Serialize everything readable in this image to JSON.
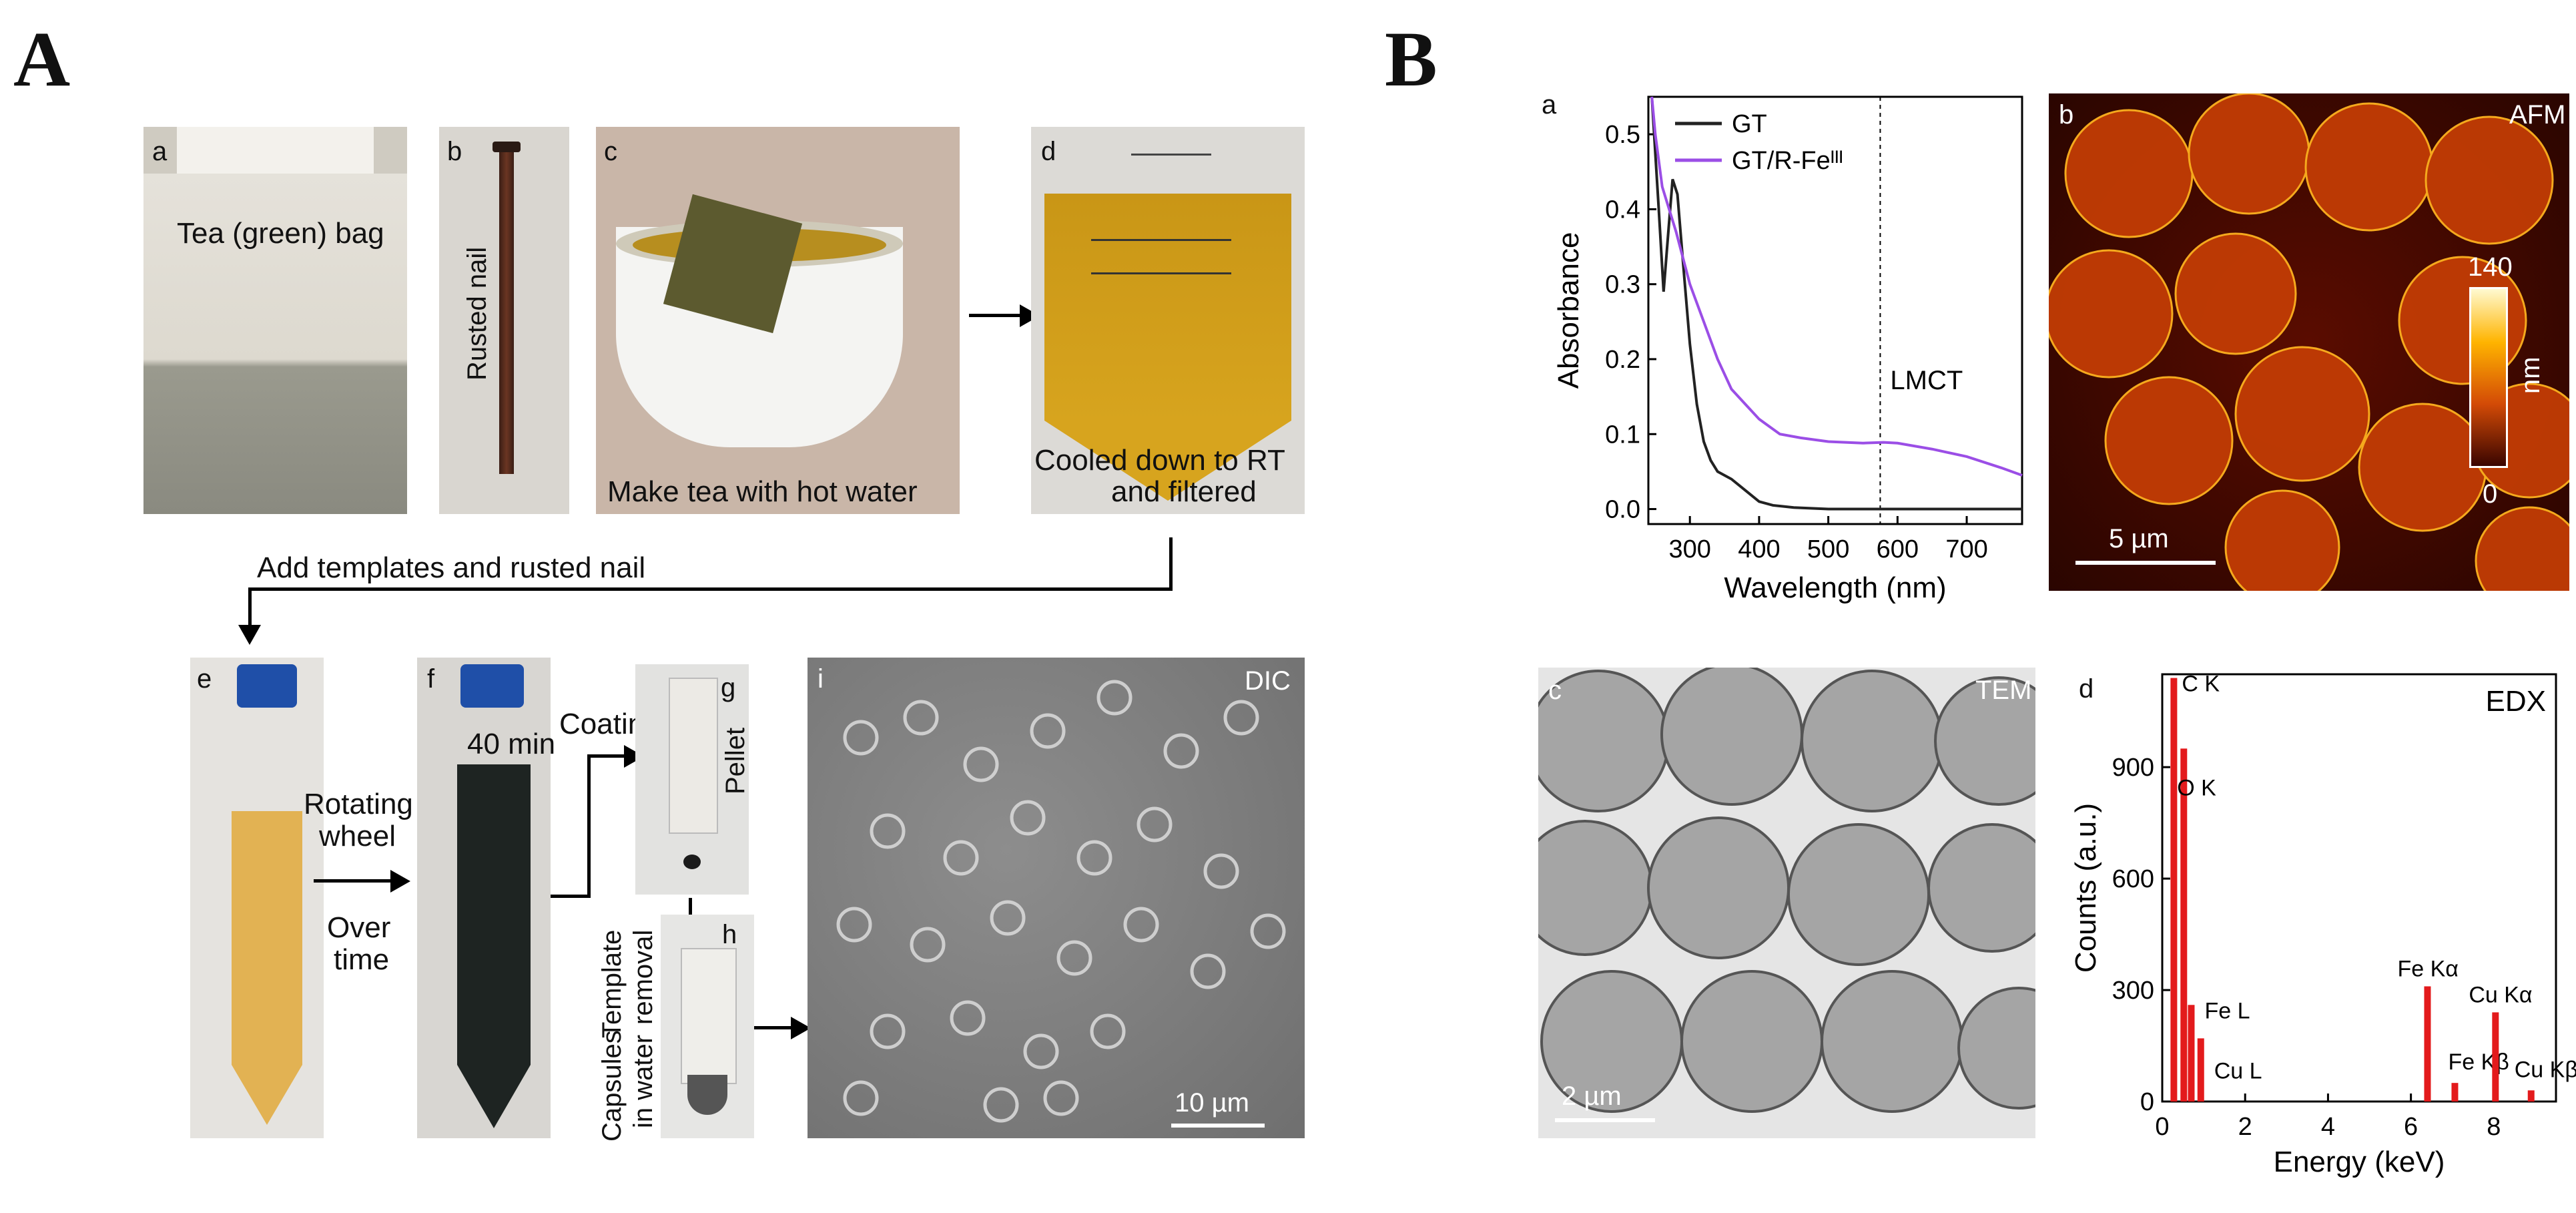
{
  "panels": {
    "A": "A",
    "B": "B"
  },
  "A": {
    "a": {
      "letter": "a",
      "caption": "Tea (green) bag"
    },
    "b": {
      "letter": "b",
      "caption": "Rusted nail"
    },
    "c": {
      "letter": "c",
      "caption": "Make tea with hot water"
    },
    "d": {
      "letter": "d",
      "caption_1": "Cooled down to RT",
      "caption_2": "and filtered"
    },
    "step": "Add templates and rusted nail",
    "e": {
      "letter": "e"
    },
    "f": {
      "letter": "f",
      "time": "40 min"
    },
    "rot_1": "Rotating",
    "rot_2": "wheel",
    "rot_3": "Over",
    "rot_4": "time",
    "coating": "Coating",
    "g": {
      "letter": "g",
      "side": "Pellet"
    },
    "template_1": "Template",
    "template_2": "removal",
    "h": {
      "letter": "h",
      "side_1": "Capsules",
      "side_2": "in water"
    },
    "i": {
      "letter": "i",
      "mode": "DIC",
      "scale": "10 µm"
    }
  },
  "B": {
    "a": {
      "letter": "a"
    },
    "b": {
      "letter": "b",
      "mode": "AFM",
      "scale": "5 µm",
      "cbar_max": "140",
      "cbar_min": "0",
      "cbar_unit": "nm"
    },
    "c": {
      "letter": "c",
      "mode": "TEM",
      "scale": "2 µm"
    },
    "d": {
      "letter": "d"
    }
  },
  "chart_data": [
    {
      "type": "line",
      "xlabel": "Wavelength (nm)",
      "ylabel": "Absorbance",
      "xlim": [
        240,
        780
      ],
      "ylim": [
        -0.02,
        0.55
      ],
      "xticks": [
        300,
        400,
        500,
        600,
        700
      ],
      "yticks": [
        0.0,
        0.1,
        0.2,
        0.3,
        0.4,
        0.5
      ],
      "legend_position": "top-right",
      "annotation": "LMCT",
      "vline_x": 575,
      "series": [
        {
          "name": "GT",
          "color": "#222222",
          "x": [
            245,
            255,
            262,
            268,
            275,
            282,
            290,
            300,
            310,
            320,
            330,
            340,
            360,
            380,
            400,
            420,
            450,
            500,
            550,
            600,
            700,
            780
          ],
          "y": [
            0.55,
            0.4,
            0.29,
            0.36,
            0.44,
            0.42,
            0.33,
            0.22,
            0.14,
            0.09,
            0.065,
            0.05,
            0.04,
            0.025,
            0.01,
            0.005,
            0.002,
            0.0,
            0.0,
            0.0,
            0.0,
            0.0
          ]
        },
        {
          "name": "GT/R-Feᴵᴵᴵ",
          "color": "#9b4ee6",
          "x": [
            245,
            250,
            260,
            270,
            280,
            300,
            320,
            340,
            360,
            380,
            400,
            430,
            460,
            500,
            550,
            580,
            600,
            650,
            700,
            750,
            780
          ],
          "y": [
            0.55,
            0.5,
            0.43,
            0.4,
            0.37,
            0.3,
            0.25,
            0.2,
            0.16,
            0.14,
            0.12,
            0.1,
            0.095,
            0.09,
            0.088,
            0.089,
            0.088,
            0.08,
            0.07,
            0.055,
            0.045
          ]
        }
      ]
    },
    {
      "type": "bar",
      "title": "EDX",
      "xlabel": "Energy (keV)",
      "ylabel": "Counts (a.u.)",
      "xlim": [
        0,
        9.5
      ],
      "ylim": [
        0,
        1150
      ],
      "xticks": [
        0,
        2,
        4,
        6,
        8
      ],
      "yticks": [
        0,
        300,
        600,
        900
      ],
      "color": "#e31a1c",
      "peaks": [
        {
          "x": 0.28,
          "y": 1140,
          "label": "C K"
        },
        {
          "x": 0.52,
          "y": 950,
          "label": "O K"
        },
        {
          "x": 0.7,
          "y": 260,
          "label": "Fe L"
        },
        {
          "x": 0.93,
          "y": 170,
          "label": "Cu L"
        },
        {
          "x": 6.4,
          "y": 310,
          "label": "Fe Kα"
        },
        {
          "x": 7.06,
          "y": 50,
          "label": "Fe Kβ"
        },
        {
          "x": 8.04,
          "y": 240,
          "label": "Cu Kα"
        },
        {
          "x": 8.9,
          "y": 30,
          "label": "Cu Kβ"
        }
      ]
    }
  ]
}
